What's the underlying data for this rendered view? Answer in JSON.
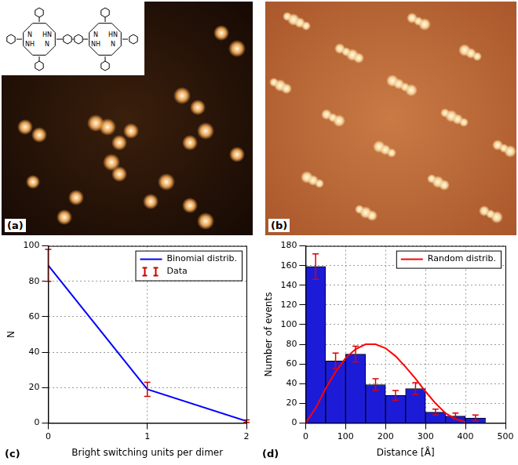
{
  "images": [
    {
      "panel_label": "(a)",
      "inset_labels": [
        "N",
        "HN",
        "NH",
        "N"
      ]
    },
    {
      "panel_label": "(b)"
    }
  ],
  "chart_data": [
    {
      "type": "line",
      "panel_label": "(c)",
      "x_label": "Bright switching units per dimer",
      "y_label": "N",
      "xlim": [
        0,
        2
      ],
      "xticks": [
        0,
        1,
        2
      ],
      "ylim": [
        0,
        100
      ],
      "yticks": [
        0,
        20,
        40,
        60,
        80,
        100
      ],
      "grid": true,
      "legend": "top-right",
      "series": [
        {
          "name": "Binomial distrib.",
          "type": "line",
          "color": "#0000ff",
          "x": [
            0,
            1,
            2
          ],
          "values": [
            89,
            19,
            1
          ]
        },
        {
          "name": "Data",
          "type": "scatter",
          "color": "#cc0000",
          "marker": "errorbar",
          "x": [
            0,
            1,
            2
          ],
          "values": [
            89,
            19,
            1
          ],
          "errors": [
            9,
            4,
            0.7
          ]
        }
      ]
    },
    {
      "type": "histogram",
      "panel_label": "(d)",
      "x_label": "Distance [Å]",
      "y_label": "Number of events",
      "xlim": [
        0,
        500
      ],
      "xticks": [
        0,
        100,
        200,
        300,
        400,
        500
      ],
      "ylim": [
        0,
        180
      ],
      "yticks": [
        0,
        20,
        40,
        60,
        80,
        100,
        120,
        140,
        160,
        180
      ],
      "grid": true,
      "legend": "top-right",
      "color": "#1c1cd8",
      "bins": [
        0,
        50,
        100,
        150,
        200,
        250,
        300,
        350,
        400,
        450
      ],
      "values": [
        159,
        63,
        70,
        39,
        28,
        35,
        11,
        7,
        5
      ],
      "errors": [
        13,
        8,
        8,
        6,
        5,
        6,
        3,
        3,
        3
      ],
      "series": [
        {
          "name": "Random distrib.",
          "type": "line",
          "color": "#ff0000",
          "x": [
            0,
            25,
            50,
            75,
            100,
            125,
            150,
            175,
            200,
            225,
            250,
            275,
            300,
            325,
            350,
            375,
            400
          ],
          "values": [
            0,
            15,
            35,
            52,
            66,
            75,
            80,
            80,
            76,
            68,
            57,
            45,
            32,
            20,
            10,
            4,
            1
          ]
        }
      ]
    }
  ]
}
